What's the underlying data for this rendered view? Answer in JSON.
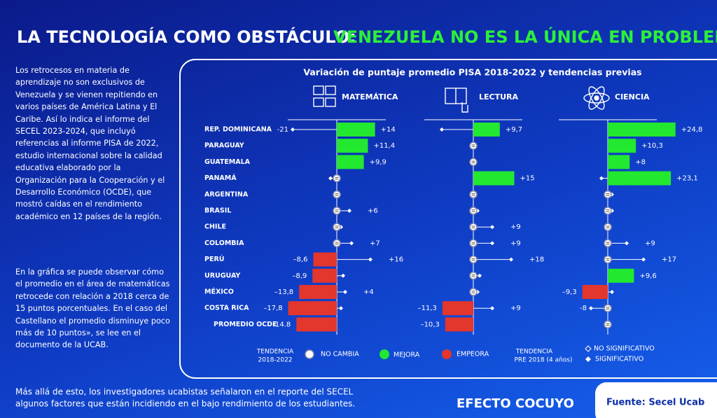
{
  "header": {
    "title_white": "LA TECNOLOGÍA COMO OBSTÁCULO:",
    "title_green": "VENEZUELA NO ES LA ÚNICA EN PROBLEMAS"
  },
  "intro": [
    "Los retrocesos en materia de aprendizaje no son exclusivos de Venezuela y se vienen repitiendo en varios países de América Latina y El Caribe. Así lo indica el informe del SECEL 2023-2024, que incluyó referencias al informe PISA de 2022, estudio internacional sobre la calidad educativa elaborado por la Organización para la Cooperación y el Desarrollo Económico (OCDE), que mostró caídas en el rendimiento académico en 12 países de la región.",
    "En la gráfica se puede observar cómo el promedio en el área de matemáticas retrocede con relación a 2018 cerca de 15 puntos porcentuales. En el caso del Castellano el promedio disminuye poco más de 10 puntos», se lee en el documento de la UCAB."
  ],
  "footer": {
    "lines": [
      "Más allá de esto, los investigadores ucabistas señalaron en el reporte del SECEL",
      "algunos factores que están incidiendo en el bajo rendimiento de los estudiantes."
    ],
    "brand": "EFECTO COCUYO",
    "source": "Fuente: Secel Ucab"
  },
  "chart_data": {
    "type": "bar",
    "title": "Variación de puntaje promedio PISA 2018-2022 y tendencias previas",
    "categories": [
      "REP. DOMINICANA",
      "PARAGUAY",
      "GUATEMALA",
      "PANAMÁ",
      "ARGENTINA",
      "BRASIL",
      "CHILE",
      "COLOMBIA",
      "PERÚ",
      "URUGUAY",
      "MÉXICO",
      "COSTA RICA",
      "PROMEDIO OCDE"
    ],
    "colors": {
      "mejora": "#22e830",
      "empeora": "#e3362c"
    },
    "series": [
      {
        "name": "MATEMÁTICA",
        "values": [
          14,
          11.4,
          9.9,
          null,
          null,
          null,
          null,
          null,
          -8.6,
          -8.9,
          -13.8,
          -17.8,
          -14.8
        ],
        "value_labels": [
          "+14",
          "+11,4",
          "+9,9",
          null,
          null,
          null,
          null,
          null,
          "–8,6",
          "–8,9",
          "–13,8",
          "–17,8",
          "-14.8"
        ],
        "trend": [
          -21,
          null,
          null,
          -3,
          1,
          6,
          2,
          7,
          16,
          3,
          4,
          2,
          null
        ],
        "trend_labels": [
          "-21",
          null,
          null,
          null,
          null,
          "+6",
          null,
          "+7",
          "+16",
          null,
          "+4",
          null,
          null
        ]
      },
      {
        "name": "LECTURA",
        "values": [
          9.7,
          null,
          null,
          15,
          null,
          null,
          null,
          null,
          null,
          null,
          null,
          -11.3,
          -10.3
        ],
        "value_labels": [
          "+9,7",
          null,
          null,
          "+15",
          null,
          null,
          null,
          null,
          null,
          null,
          null,
          "–11,3",
          "–10,3"
        ],
        "trend": [
          -15,
          null,
          null,
          null,
          null,
          2,
          9,
          9,
          18,
          3,
          2,
          9,
          null
        ],
        "trend_labels": [
          null,
          null,
          null,
          null,
          null,
          null,
          "+9",
          "+9",
          "+18",
          null,
          null,
          "+9",
          null
        ]
      },
      {
        "name": "CIENCIA",
        "values": [
          24.8,
          10.3,
          8,
          23.1,
          null,
          null,
          null,
          null,
          null,
          9.6,
          -9.3,
          null,
          null
        ],
        "value_labels": [
          "+24,8",
          "+10,3",
          "+8",
          "+23,1",
          null,
          null,
          null,
          null,
          null,
          "+9,6",
          "–9,3",
          null,
          null
        ],
        "trend": [
          3,
          null,
          null,
          -3,
          2,
          2,
          null,
          9,
          17,
          null,
          2,
          -8,
          null
        ],
        "trend_labels": [
          null,
          null,
          null,
          null,
          null,
          null,
          null,
          "+9",
          "+17",
          null,
          null,
          "-8",
          null
        ]
      }
    ],
    "legend": {
      "trend_title": [
        "TENDENCIA",
        "2018-2022"
      ],
      "no_change": "NO CAMBIA",
      "improve": "MEJORA",
      "worsen": "EMPEORA",
      "pre_title": [
        "TENDENCIA",
        "PRE 2018 (4 años)"
      ],
      "not_significant": "NO SIGNIFICATIVO",
      "significant": "SIGNIFICATIVO"
    }
  }
}
